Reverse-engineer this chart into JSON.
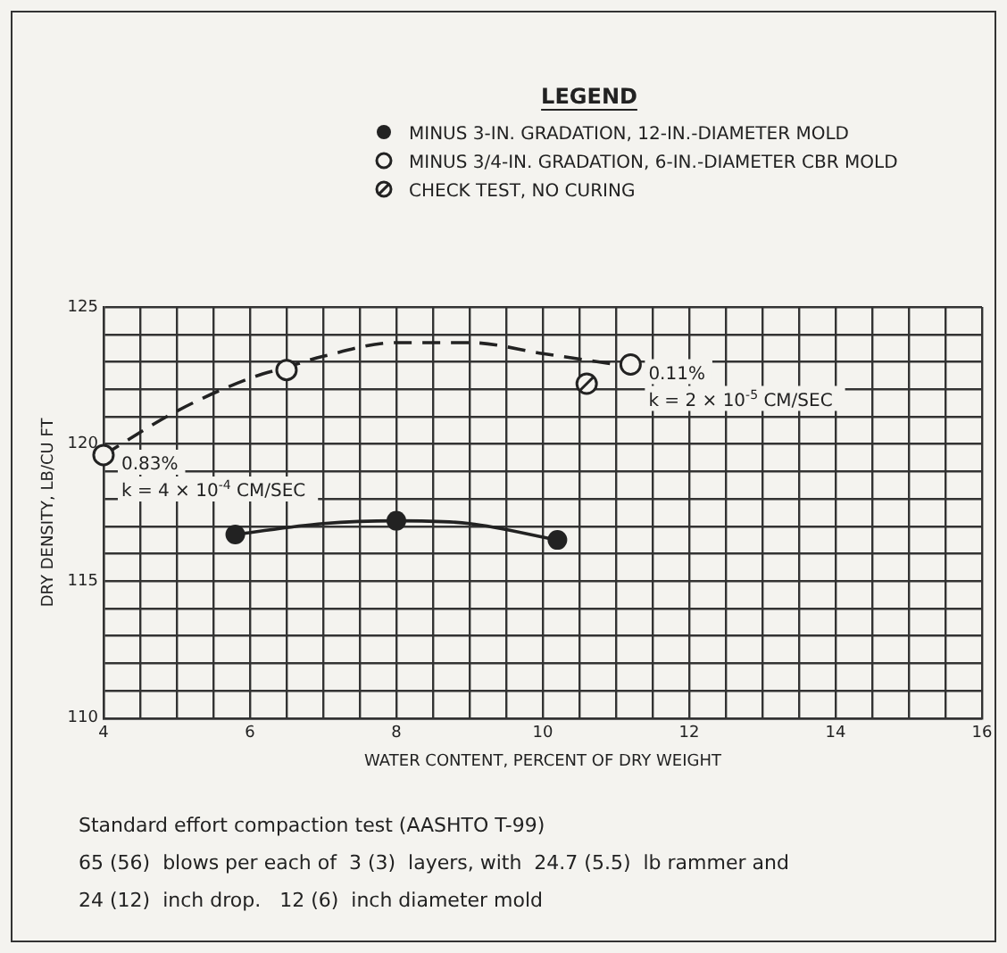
{
  "chart_data": {
    "type": "scatter",
    "xlabel": "WATER CONTENT, PERCENT OF DRY WEIGHT",
    "ylabel": "DRY DENSITY, LB/CU FT",
    "legend_title": "LEGEND",
    "legend": "top",
    "xlim": [
      4,
      16
    ],
    "ylim": [
      110,
      125
    ],
    "xticks": [
      4,
      {
        "value": 4.5,
        "label": null
      },
      {
        "value": 5,
        "label": null
      },
      {
        "value": 5.5,
        "label": null
      },
      6,
      {
        "value": 6.5,
        "label": null
      },
      {
        "value": 7,
        "label": null
      },
      {
        "value": 7.5,
        "label": null
      },
      8,
      {
        "value": 8.5,
        "label": null
      },
      {
        "value": 9,
        "label": null
      },
      {
        "value": 9.5,
        "label": null
      },
      10,
      {
        "value": 10.5,
        "label": null
      },
      {
        "value": 11,
        "label": null
      },
      {
        "value": 11.5,
        "label": null
      },
      12,
      {
        "value": 12.5,
        "label": null
      },
      {
        "value": 13,
        "label": null
      },
      {
        "value": 13.5,
        "label": null
      },
      14,
      {
        "value": 14.5,
        "label": null
      },
      {
        "value": 15,
        "label": null
      },
      {
        "value": 15.5,
        "label": null
      },
      16
    ],
    "yticks": [
      110,
      {
        "value": 111,
        "label": null
      },
      {
        "value": 112,
        "label": null
      },
      {
        "value": 113,
        "label": null
      },
      {
        "value": 114,
        "label": null
      },
      115,
      {
        "value": 116,
        "label": null
      },
      {
        "value": 117,
        "label": null
      },
      {
        "value": 118,
        "label": null
      },
      {
        "value": 119,
        "label": null
      },
      120,
      {
        "value": 121,
        "label": null
      },
      {
        "value": 122,
        "label": null
      },
      {
        "value": 123,
        "label": null
      },
      {
        "value": 124,
        "label": null
      },
      125
    ],
    "grid": true,
    "series": [
      {
        "name": "MINUS 3-IN. GRADATION, 12-IN.-DIAMETER MOLD",
        "type": "scatter",
        "marker": "circle",
        "color": "#222222",
        "x": [
          5.8,
          8.0,
          10.2
        ],
        "values": [
          116.7,
          117.2,
          116.5
        ]
      },
      {
        "name": "MINUS 3/4-IN. GRADATION, 6-IN.-DIAMETER CBR MOLD",
        "type": "scatter",
        "marker": "circle_open",
        "color": "#222222",
        "x": [
          4.0,
          6.5,
          11.2
        ],
        "values": [
          119.6,
          122.7,
          122.9
        ]
      },
      {
        "name": "CHECK TEST, NO CURING",
        "type": "scatter",
        "marker": "circle_slash",
        "color": "#222222",
        "x": [
          10.6
        ],
        "values": [
          122.2
        ]
      },
      {
        "type": "line",
        "marker": "none",
        "line_style": "solid",
        "color": "#222222",
        "x": [
          5.8,
          7,
          8,
          9,
          10.2
        ],
        "values": [
          116.7,
          117.1,
          117.2,
          117.1,
          116.5
        ]
      },
      {
        "type": "line",
        "marker": "none",
        "line_style": "dashed",
        "color": "#222222",
        "x": [
          4.0,
          5,
          6,
          6.5,
          7,
          8,
          9,
          10,
          11
        ],
        "values": [
          119.6,
          121.2,
          122.4,
          122.8,
          123.2,
          123.7,
          123.7,
          123.3,
          122.9
        ]
      }
    ],
    "annotations": [
      {
        "text": "0.83%\nk = 4 × 10$^{-4}$ CM/SEC",
        "x": 4.0,
        "y": 119.6
      },
      {
        "text": "0.11%\nk = 2 × 10$^{-5}$ CM/SEC",
        "x": 11.2,
        "y": 122.9
      },
      "Standard effort compaction test (AASHTO T-99)",
      "65 (56)  blows per each of  3 (3)  layers, with  24.7 (5.5)  lb rammer and",
      "24 (12)  inch drop.   12 (6)  inch diameter mold"
    ]
  }
}
